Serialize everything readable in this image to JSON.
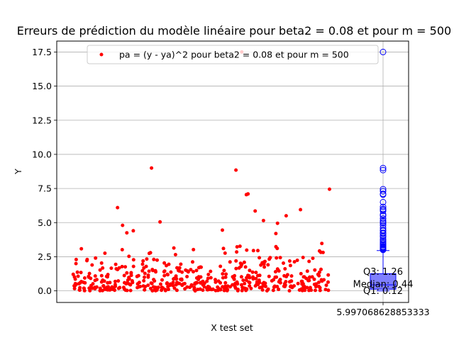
{
  "chart_data": {
    "type": "scatter",
    "title": "Erreurs de prédiction du modèle linéaire pour beta2 = 0.08 et pour m = 500",
    "xlabel": "X test set",
    "ylabel": "Y",
    "ylim": [
      -0.85,
      18.3
    ],
    "yticks": [
      "0.0",
      "2.5",
      "5.0",
      "7.5",
      "10.0",
      "12.5",
      "15.0",
      "17.5"
    ],
    "xticks": [
      "5.997068628853333"
    ],
    "grid": true,
    "legend": {
      "placement": "top-center",
      "label": "pa = (y - ya)^2 pour beta2 = 0.08 et pour m = 500"
    },
    "series": [
      {
        "name": "pa = (y - ya)^2 pour beta2 = 0.08 et pour m = 500",
        "type": "scatter",
        "color": "#ff0000",
        "n": 500,
        "notable_points": [
          17.5,
          9.0,
          8.85,
          7.45,
          7.1,
          7.05,
          6.1,
          5.95,
          5.85,
          5.5,
          5.15,
          5.05,
          4.95,
          4.8,
          4.45,
          4.4,
          4.25,
          4.2
        ]
      }
    ],
    "boxplot": {
      "color": "#0000ff",
      "fill": "#7f7fff",
      "q1": 0.12,
      "median": 0.44,
      "q3": 1.26,
      "whisker_low": 0.0,
      "whisker_high": 2.95,
      "outliers": [
        17.5,
        9.0,
        8.85,
        7.45,
        7.3,
        7.1,
        7.05,
        6.5,
        6.15,
        6.0,
        5.95,
        5.85,
        5.6,
        5.5,
        5.3,
        5.15,
        5.05,
        4.95,
        4.8,
        4.6,
        4.45,
        4.4,
        4.25,
        4.2,
        4.05,
        3.95,
        3.8,
        3.7,
        3.6,
        3.5,
        3.4,
        3.35,
        3.25,
        3.2,
        3.15,
        3.1,
        3.05,
        3.0
      ],
      "annotations": {
        "q3": "Q3: 1.26",
        "median": "Median: 0.44",
        "q1": "Q1: 0.12"
      }
    }
  }
}
